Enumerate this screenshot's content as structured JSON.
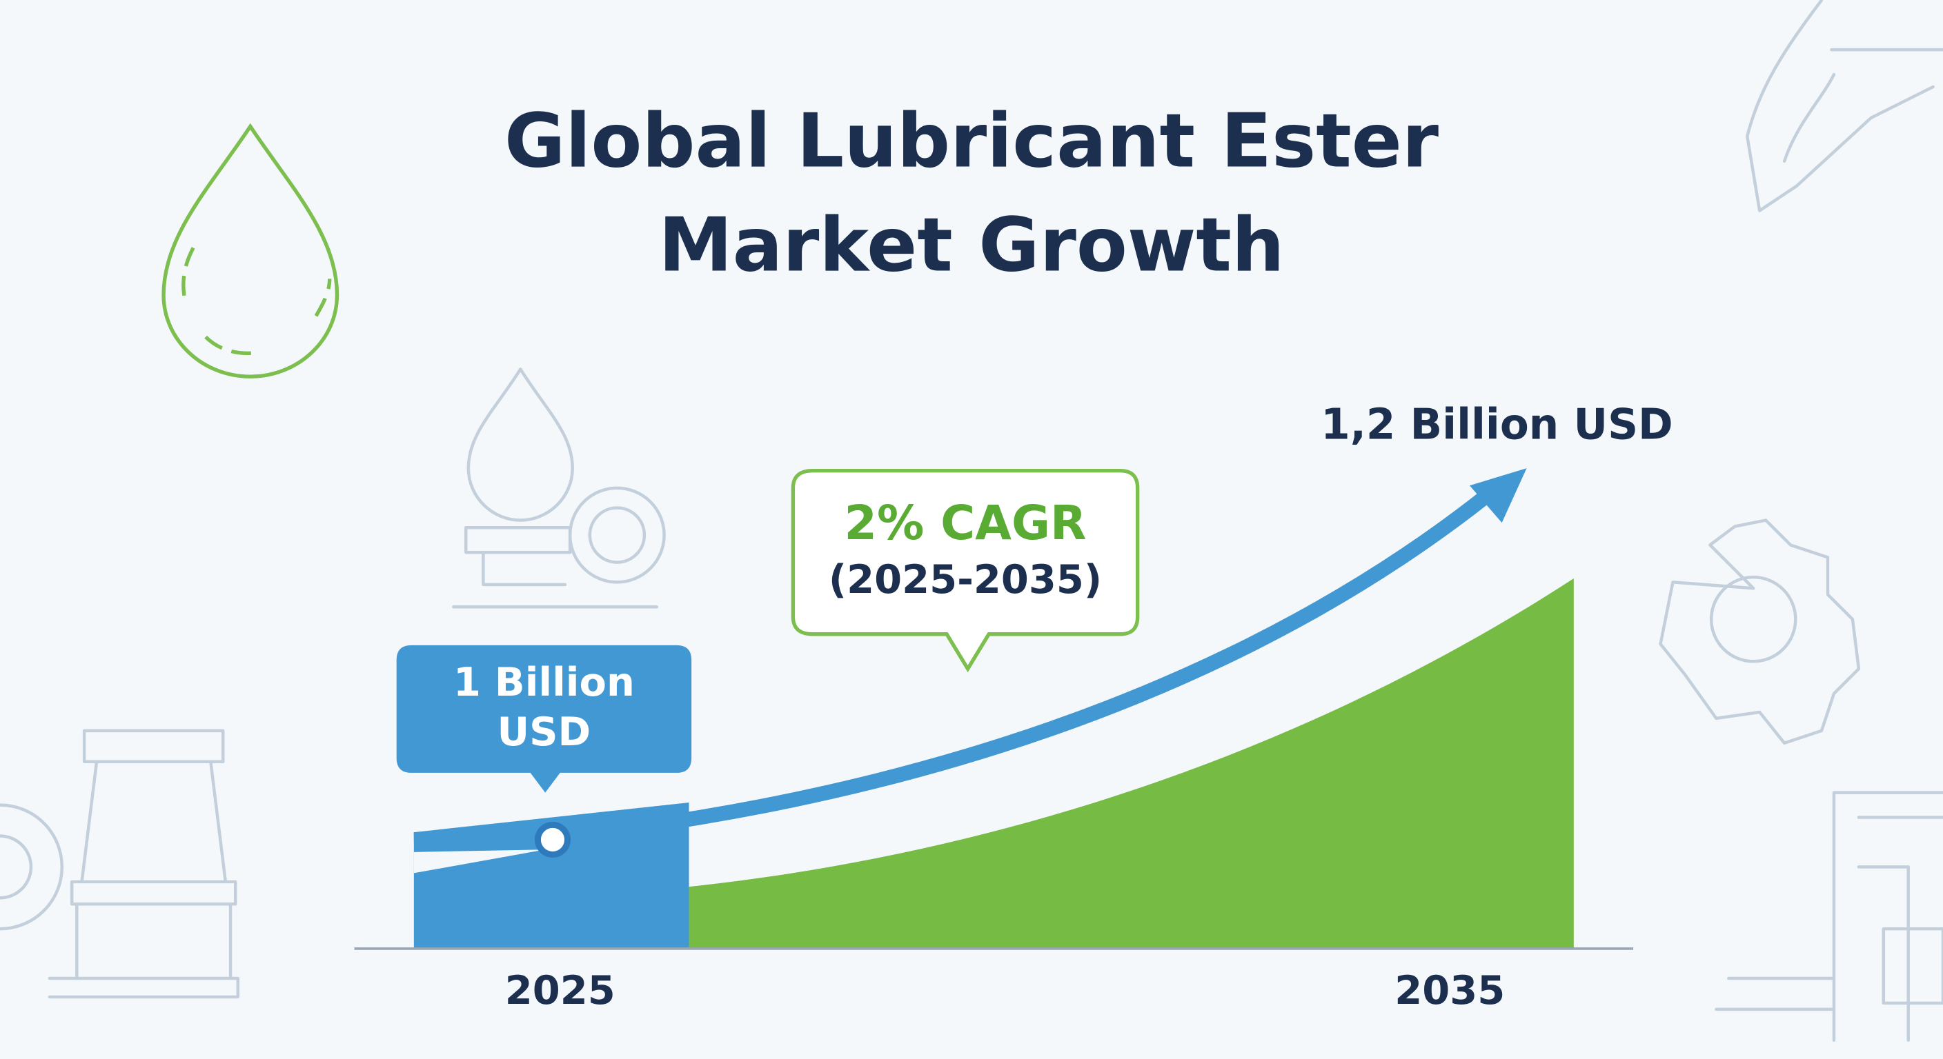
{
  "title_lines": [
    "Global Lubricant Ester",
    "Market Growth"
  ],
  "start_label_lines": [
    "1 Billion",
    "USD"
  ],
  "end_label": "1,2 Billion USD",
  "cagr": "2% CAGR",
  "period": "(2025-2035)",
  "years": [
    "2025",
    "2035"
  ]
}
